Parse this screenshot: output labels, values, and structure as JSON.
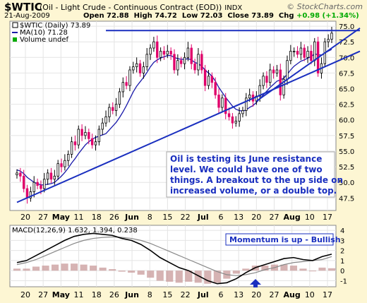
{
  "header": {
    "symbol": "$WTIC",
    "description": "(Oil - Light Crude - Continuous Contract (EOD))",
    "exchange": "INDX",
    "date": "21-Aug-2009",
    "open_label": "Open",
    "open": "72.88",
    "high_label": "High",
    "high": "74.72",
    "low_label": "Low",
    "low": "72.03",
    "close_label": "Close",
    "close": "73.89",
    "chg_label": "Chg",
    "chg": "+0.98 (+1.34%)",
    "brand": "© StockCharts.com"
  },
  "legend": {
    "price": "$WTIC (Daily) 73.89",
    "ma": "MA(10) 71.28",
    "volume": "Volume undef"
  },
  "annotation": {
    "main": [
      "Oil is testing its June resistance",
      "level. We could have one of two",
      "things. A breakout to the up side on",
      "increased volume, or a double top."
    ],
    "macd": "Momentum is up - Bullish"
  },
  "macd_legend": {
    "label": "MACD(12,26,9) 1.632, 1.394, 0.238"
  },
  "colors": {
    "background": "#fdf6d3",
    "plot": "#ffffff",
    "candle": "#000000",
    "down": "#e0006a",
    "ma": "#1a1aaa",
    "trendline": "#1a2fbf",
    "annotation_text": "#1a2fbf",
    "histogram": "#c89a9a"
  },
  "chart_data": [
    {
      "type": "candlestick",
      "title": "$WTIC (Daily)",
      "x_tick_labels": [
        "20",
        "27",
        "May",
        "11",
        "18",
        "26",
        "Jun",
        "8",
        "15",
        "22",
        "Jul",
        "6",
        "13",
        "20",
        "27",
        "Aug",
        "10",
        "17"
      ],
      "y_tick_labels": [
        "47.5",
        "50.0",
        "52.5",
        "55.0",
        "57.5",
        "60.0",
        "62.5",
        "65.0",
        "67.5",
        "70.0",
        "72.5",
        "75.0"
      ],
      "ylim": [
        45.5,
        75.8
      ],
      "grid": true,
      "series": [
        {
          "name": "$WTIC",
          "close": [
            51.5,
            51.0,
            49.0,
            47.5,
            48.5,
            50.0,
            49.5,
            49.0,
            50.5,
            51.5,
            50.5,
            51.0,
            53.0,
            52.5,
            53.5,
            54.5,
            56.5,
            56.0,
            58.5,
            57.5,
            58.0,
            57.0,
            56.0,
            56.5,
            58.5,
            59.5,
            60.5,
            62.0,
            61.5,
            62.5,
            64.5,
            66.0,
            65.5,
            68.0,
            68.5,
            69.0,
            67.5,
            68.5,
            70.5,
            71.5,
            72.5,
            70.0,
            71.0,
            70.5,
            71.0,
            70.5,
            68.0,
            69.5,
            69.0,
            70.0,
            71.5,
            69.0,
            68.0,
            70.5,
            68.0,
            65.5,
            67.0,
            66.0,
            64.0,
            62.0,
            63.5,
            61.0,
            60.5,
            59.5,
            59.8,
            61.0,
            61.5,
            63.5,
            64.0,
            63.0,
            63.8,
            65.5,
            67.0,
            66.0,
            68.0,
            67.5,
            68.0,
            64.0,
            66.5,
            69.5,
            71.0,
            71.0,
            70.5,
            71.5,
            70.0,
            71.0,
            69.5,
            72.5,
            67.5,
            69.0,
            72.5,
            72.9,
            73.89
          ]
        },
        {
          "name": "MA(10)",
          "values": [
            52.0,
            51.8,
            51.4,
            50.8,
            50.4,
            50.0,
            49.8,
            49.6,
            49.6,
            49.7,
            49.8,
            50.0,
            50.5,
            51.0,
            51.6,
            52.3,
            53.1,
            53.8,
            54.6,
            55.3,
            56.0,
            56.5,
            56.9,
            57.2,
            57.4,
            57.6,
            57.8,
            58.4,
            59.0,
            59.6,
            60.4,
            61.3,
            62.3,
            63.4,
            64.5,
            65.4,
            66.1,
            66.8,
            67.6,
            68.5,
            69.2,
            69.6,
            69.9,
            70.1,
            70.3,
            70.3,
            70.0,
            69.8,
            69.7,
            69.7,
            69.8,
            69.6,
            69.2,
            69.0,
            68.6,
            68.0,
            67.5,
            67.0,
            66.2,
            65.2,
            64.4,
            63.6,
            62.9,
            62.2,
            61.7,
            61.5,
            61.4,
            61.6,
            62.0,
            62.3,
            62.8,
            63.4,
            64.0,
            64.6,
            65.2,
            65.7,
            66.2,
            66.4,
            66.7,
            67.3,
            68.0,
            68.6,
            69.0,
            69.4,
            69.6,
            69.9,
            70.1,
            70.6,
            70.4,
            70.4,
            70.7,
            71.0,
            71.28
          ]
        }
      ],
      "trendlines": [
        {
          "name": "support",
          "from": [
            0,
            46.8
          ],
          "to": [
            92,
            69.0
          ]
        },
        {
          "name": "resistance",
          "from": [
            26,
            74.3
          ],
          "to": [
            92,
            74.3
          ]
        },
        {
          "name": "support-2",
          "from": [
            70,
            63.0
          ],
          "to": [
            92,
            71.5
          ]
        }
      ]
    },
    {
      "type": "line",
      "title": "MACD(12,26,9)",
      "y_tick_labels": [
        "4",
        "3",
        "2",
        "1",
        "0",
        "-1"
      ],
      "ylim": [
        -1.6,
        4.5
      ],
      "series": [
        {
          "name": "MACD",
          "values": [
            0.8,
            1.0,
            1.5,
            2.0,
            2.5,
            3.0,
            3.4,
            3.6,
            3.7,
            3.6,
            3.5,
            3.2,
            3.0,
            2.6,
            2.0,
            1.3,
            0.8,
            0.3,
            0.0,
            -0.5,
            -1.0,
            -1.3,
            -1.2,
            -0.8,
            -0.2,
            0.3,
            0.6,
            0.9,
            1.2,
            1.3,
            1.1,
            1.0,
            1.4,
            1.632
          ]
        },
        {
          "name": "Signal",
          "values": [
            0.6,
            0.8,
            1.1,
            1.5,
            1.9,
            2.3,
            2.7,
            3.0,
            3.2,
            3.3,
            3.35,
            3.3,
            3.2,
            3.0,
            2.7,
            2.3,
            1.9,
            1.5,
            1.1,
            0.7,
            0.3,
            -0.1,
            -0.4,
            -0.5,
            -0.4,
            -0.2,
            0.1,
            0.3,
            0.6,
            0.8,
            0.9,
            1.0,
            1.1,
            1.394
          ]
        },
        {
          "name": "Histogram",
          "values": [
            0.2,
            0.2,
            0.4,
            0.5,
            0.6,
            0.7,
            0.7,
            0.6,
            0.5,
            0.3,
            0.15,
            -0.1,
            -0.2,
            -0.4,
            -0.7,
            -1.0,
            -1.1,
            -1.2,
            -1.1,
            -1.2,
            -1.3,
            -1.2,
            -0.8,
            -0.3,
            0.2,
            0.5,
            0.5,
            0.6,
            0.6,
            0.5,
            0.2,
            0.0,
            0.3,
            0.238
          ]
        }
      ]
    }
  ]
}
